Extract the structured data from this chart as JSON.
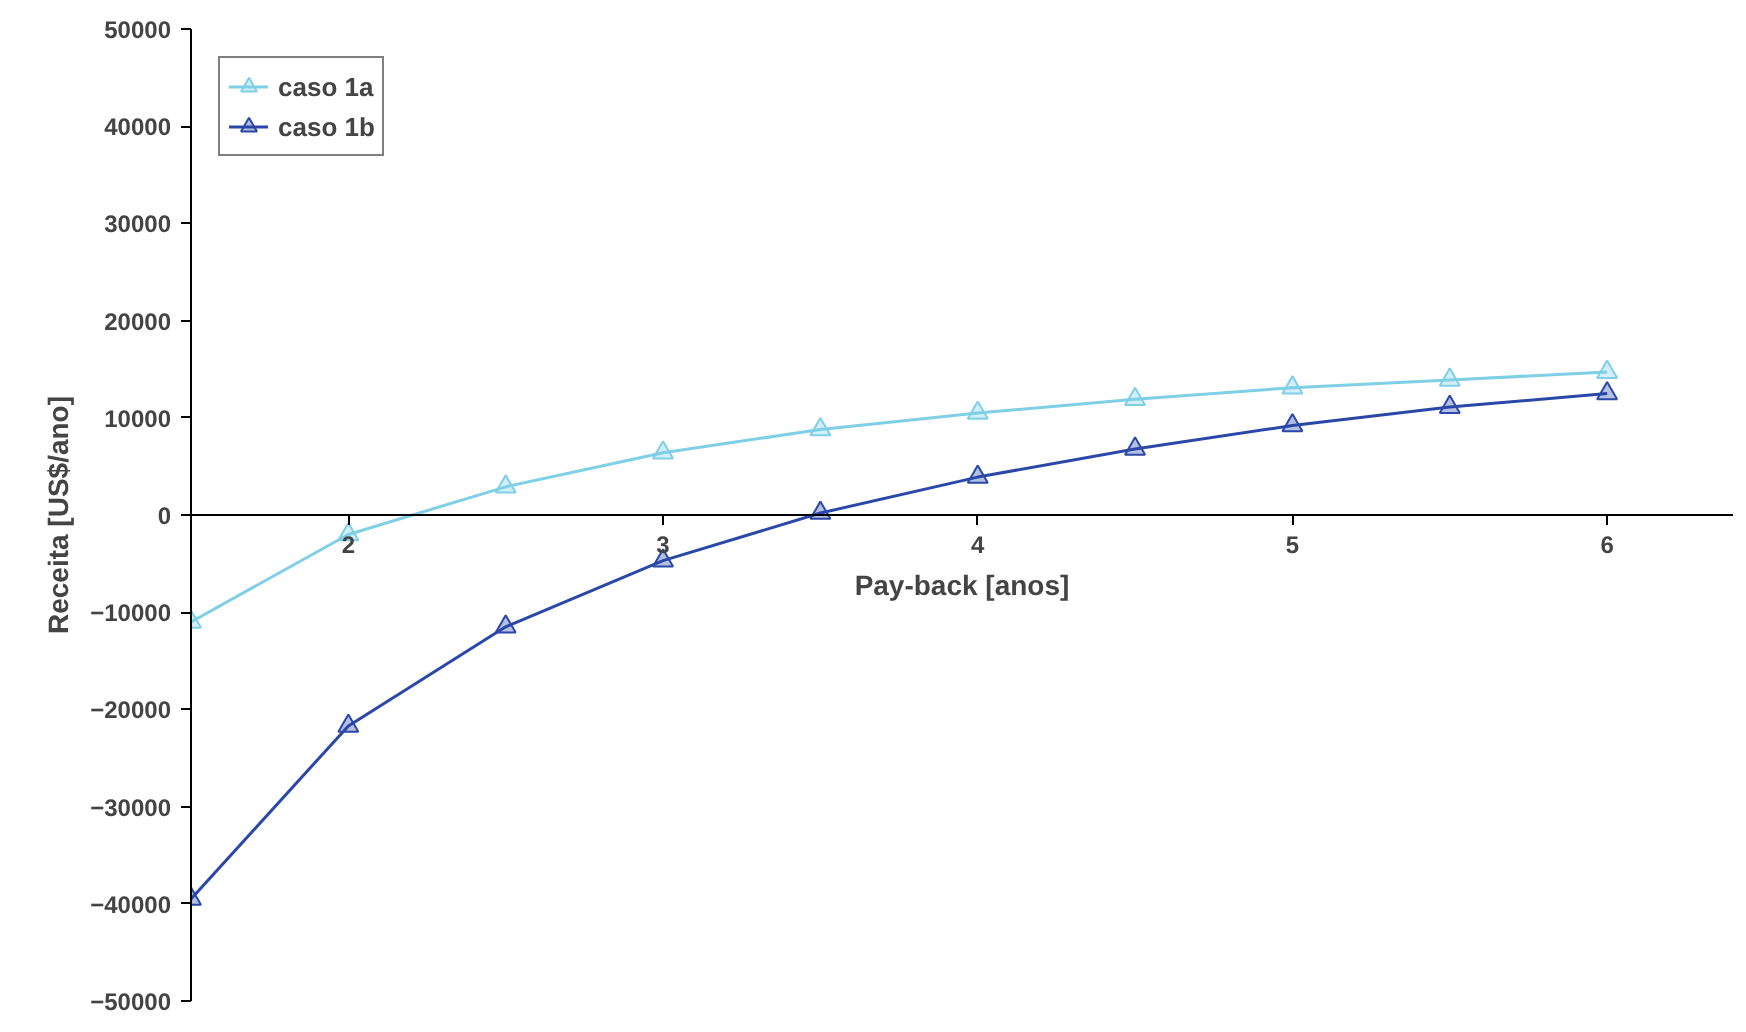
{
  "chart_data": {
    "type": "line",
    "xlabel": "Pay-back [anos]",
    "ylabel": "Receita [US$/ano]",
    "xlim": [
      1.5,
      6.4
    ],
    "ylim": [
      -50000,
      50000
    ],
    "xticks": [
      2,
      3,
      4,
      5,
      6
    ],
    "yticks": [
      -50000,
      -40000,
      -30000,
      -20000,
      -10000,
      0,
      10000,
      20000,
      30000,
      40000,
      50000
    ],
    "x": [
      1.5,
      2,
      2.5,
      3,
      3.5,
      4,
      4.5,
      5,
      5.5,
      6
    ],
    "series": [
      {
        "name": "caso 1a",
        "color": "#7fcfe6",
        "marker": "triangle",
        "values": [
          -11000,
          -2000,
          2900,
          6400,
          8800,
          10500,
          11900,
          13100,
          13900,
          14700
        ]
      },
      {
        "name": "caso 1b",
        "color": "#2a48a8",
        "marker": "triangle",
        "values": [
          -39500,
          -21700,
          -11500,
          -4700,
          200,
          3900,
          6800,
          9200,
          11100,
          12500
        ]
      }
    ],
    "grid": false,
    "legend": "top left",
    "line_style": "solid"
  }
}
